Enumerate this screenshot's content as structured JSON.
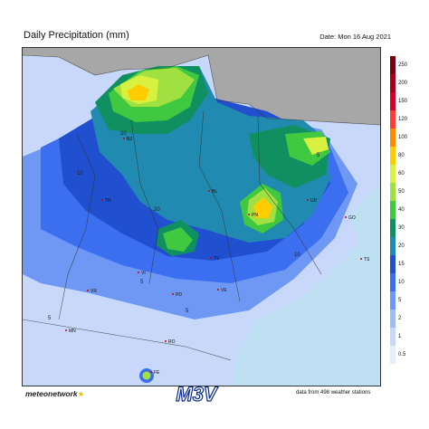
{
  "header": {
    "title": "Daily Precipitation (mm)",
    "date": "Date: Mon 16 Aug 2021"
  },
  "colorbar": {
    "ticks": [
      "250",
      "200",
      "150",
      "120",
      "100",
      "80",
      "60",
      "50",
      "40",
      "30",
      "20",
      "15",
      "10",
      "5",
      "2",
      "1",
      "0.5"
    ],
    "colors": [
      "#7a0010",
      "#a8001a",
      "#d4002a",
      "#ff3a3a",
      "#ff8800",
      "#ffcc00",
      "#d8f040",
      "#a0e040",
      "#40c840",
      "#109060",
      "#208ab0",
      "#2050d0",
      "#3c6ef0",
      "#6e98f4",
      "#9fbcf6",
      "#c8d8fa",
      "#e6eefc"
    ]
  },
  "map": {
    "cities": [
      {
        "code": "BZ"
      },
      {
        "code": "TN"
      },
      {
        "code": "BL"
      },
      {
        "code": "PN"
      },
      {
        "code": "UD"
      },
      {
        "code": "GO"
      },
      {
        "code": "TS"
      },
      {
        "code": "TV"
      },
      {
        "code": "VI"
      },
      {
        "code": "VR"
      },
      {
        "code": "PD"
      },
      {
        "code": "VE"
      },
      {
        "code": "MN"
      },
      {
        "code": "RO"
      },
      {
        "code": "FE"
      }
    ],
    "value_labels": [
      "20",
      "5",
      "5",
      "5",
      "10",
      "20",
      "5",
      "10"
    ]
  },
  "footer": {
    "brand": "meteonetwork",
    "logo_text": "M3V",
    "stations": "data from 498 weather stations"
  },
  "colors": {
    "sea": "#bfe0f2",
    "outside": "#a7a7a7"
  }
}
